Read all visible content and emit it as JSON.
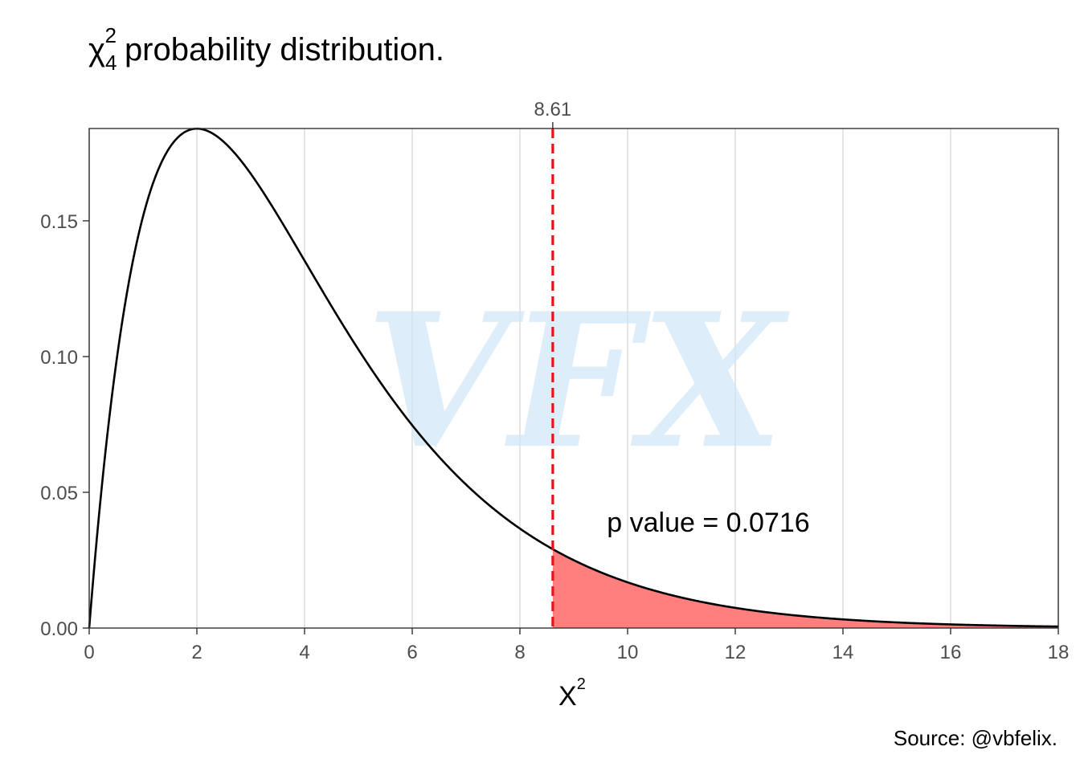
{
  "title": {
    "symbol": "χ",
    "superscript": "2",
    "subscript": "4",
    "text": "probability distribution."
  },
  "caption": "Source: @vbfelix.",
  "watermark": "VFX",
  "colors": {
    "curve": "#000000",
    "shade": "#ff7f7f",
    "cutoff_line": "#ee1111",
    "watermark": "#cfe6f8",
    "grid": "#e5e5e5"
  },
  "chart_data": {
    "type": "area",
    "distribution": "chi-squared",
    "degrees_of_freedom": 4,
    "xlabel": "X",
    "xlabel_superscript": "2",
    "ylabel": "",
    "xlim": [
      0,
      18
    ],
    "ylim": [
      0,
      0.184
    ],
    "x_ticks": [
      "0",
      "2",
      "4",
      "6",
      "8",
      "10",
      "12",
      "14",
      "16",
      "18"
    ],
    "y_ticks": [
      "0.00",
      "0.05",
      "0.10",
      "0.15"
    ],
    "x_tick_values": [
      0,
      2,
      4,
      6,
      8,
      10,
      12,
      14,
      16,
      18
    ],
    "y_tick_values": [
      0,
      0.05,
      0.1,
      0.15
    ],
    "grid": "vertical",
    "series": [
      {
        "x": [
          0,
          0.5,
          1,
          1.5,
          2,
          2.5,
          3,
          3.5,
          4,
          4.5,
          5,
          5.5,
          6,
          6.5,
          7,
          7.5,
          8,
          8.5,
          9,
          9.5,
          10,
          11,
          12,
          13,
          14,
          15,
          16,
          17,
          18
        ],
        "y": [
          0,
          0.0974,
          0.1516,
          0.1771,
          0.1839,
          0.1791,
          0.1673,
          0.1521,
          0.1353,
          0.1186,
          0.1026,
          0.0879,
          0.0747,
          0.063,
          0.0528,
          0.0441,
          0.0366,
          0.0303,
          0.025,
          0.0206,
          0.0168,
          0.0112,
          0.0074,
          0.0049,
          0.0032,
          0.0021,
          0.0013,
          0.0009,
          0.0006
        ]
      }
    ],
    "critical_value": 8.61,
    "critical_value_label": "8.61",
    "shaded_region": [
      8.61,
      18
    ],
    "annotation": "p value = 0.0716",
    "annotation_x": 11.5,
    "annotation_y": 0.0355
  }
}
